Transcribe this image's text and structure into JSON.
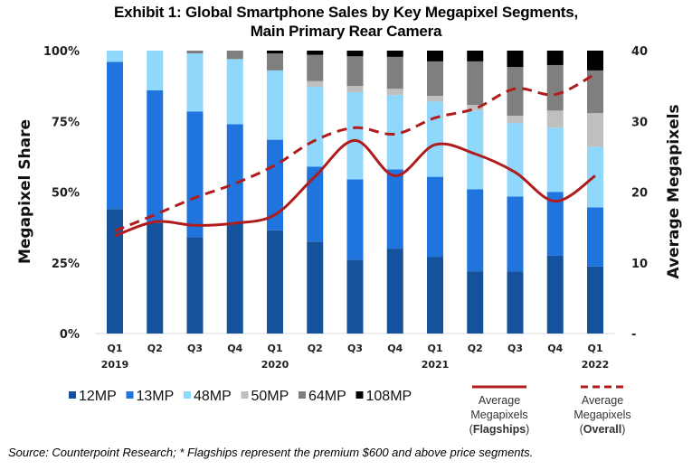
{
  "title_lines": [
    "Exhibit 1:  Global Smartphone Sales by Key Megapixel Segments,",
    "Main Primary Rear Camera"
  ],
  "source_note": "Source: Counterpoint Research; * Flagships represent the premium $600 and above price segments.",
  "chart_data": {
    "type": "bar",
    "stacked": true,
    "title": "Exhibit 1:  Global Smartphone Sales by Key Megapixel Segments, Main Primary Rear Camera",
    "categories": [
      "Q1 2019",
      "Q2 2019",
      "Q3 2019",
      "Q4 2019",
      "Q1 2020",
      "Q2 2020",
      "Q3 2020",
      "Q4 2020",
      "Q1 2021",
      "Q2 2021",
      "Q3 2021",
      "Q4 2021",
      "Q1 2022"
    ],
    "x_tick_labels": [
      {
        "q": "Q1",
        "year": "2019"
      },
      {
        "q": "Q2",
        "year": ""
      },
      {
        "q": "Q3",
        "year": ""
      },
      {
        "q": "Q4",
        "year": ""
      },
      {
        "q": "Q1",
        "year": "2020"
      },
      {
        "q": "Q2",
        "year": ""
      },
      {
        "q": "Q3",
        "year": ""
      },
      {
        "q": "Q4",
        "year": ""
      },
      {
        "q": "Q1",
        "year": "2021"
      },
      {
        "q": "Q2",
        "year": ""
      },
      {
        "q": "Q3",
        "year": ""
      },
      {
        "q": "Q4",
        "year": ""
      },
      {
        "q": "Q1",
        "year": "2022"
      }
    ],
    "ylabel": "Megapixel Share",
    "ylim": [
      0,
      100
    ],
    "yticks": [
      "0%",
      "25%",
      "50%",
      "75%",
      "100%"
    ],
    "y2label": "Average Megapixels",
    "y2lim": [
      0,
      40
    ],
    "y2ticks": [
      "-",
      "10",
      "20",
      "30",
      "40"
    ],
    "series": [
      {
        "name": "12MP",
        "color": "#14529e",
        "values": [
          44,
          39,
          34,
          39,
          36.5,
          32.5,
          26,
          30,
          27,
          22,
          22,
          27.5,
          23.7
        ]
      },
      {
        "name": "13MP",
        "color": "#1f74de",
        "values": [
          52,
          47,
          44.5,
          35,
          32,
          26.5,
          28.5,
          28,
          28.4,
          29,
          26.4,
          22.5,
          20.9
        ]
      },
      {
        "name": "48MP",
        "color": "#8fd8fb",
        "values": [
          4,
          14,
          20.5,
          23,
          24.5,
          28.2,
          30.8,
          26.3,
          26.6,
          27.8,
          26,
          22.8,
          21.4
        ]
      },
      {
        "name": "50MP",
        "color": "#bfbfbf",
        "values": [
          0,
          0,
          0,
          0,
          0,
          2,
          2.2,
          2.2,
          2,
          2,
          2.6,
          6,
          11.9
        ]
      },
      {
        "name": "64MP",
        "color": "#7f7f7f",
        "values": [
          0,
          0,
          1,
          3,
          6,
          9.3,
          10.5,
          11.3,
          12.2,
          15.4,
          17.2,
          16.1,
          15.1
        ]
      },
      {
        "name": "108MP",
        "color": "#000000",
        "values": [
          0,
          0,
          0,
          0,
          1,
          1.6,
          2,
          2.2,
          3.8,
          3.8,
          5.8,
          5.1,
          7
        ]
      }
    ],
    "lines": [
      {
        "name": "Average Megapixels (Flagships)",
        "label_lines": [
          "Average",
          "Megapixels",
          "Flagships"
        ],
        "axis": "right",
        "style": "solid",
        "color": "#b01c1c",
        "values": [
          13.8,
          15.8,
          15.3,
          15.6,
          16.8,
          22.2,
          27.3,
          22.3,
          26.7,
          25.4,
          22.8,
          18.7,
          22.3
        ]
      },
      {
        "name": "Average Megapixels (Overall)",
        "label_lines": [
          "Average",
          "Megapixels",
          "Overall"
        ],
        "axis": "right",
        "style": "dashed",
        "color": "#b01c1c",
        "values": [
          14.5,
          16.8,
          19.2,
          21.2,
          23.8,
          27.3,
          29.1,
          28.2,
          30.5,
          31.8,
          34.6,
          33.8,
          36.7
        ]
      }
    ],
    "legend": {
      "placement": "bottom",
      "entries": [
        "12MP",
        "13MP",
        "48MP",
        "50MP",
        "64MP",
        "108MP"
      ]
    },
    "grid": false
  }
}
